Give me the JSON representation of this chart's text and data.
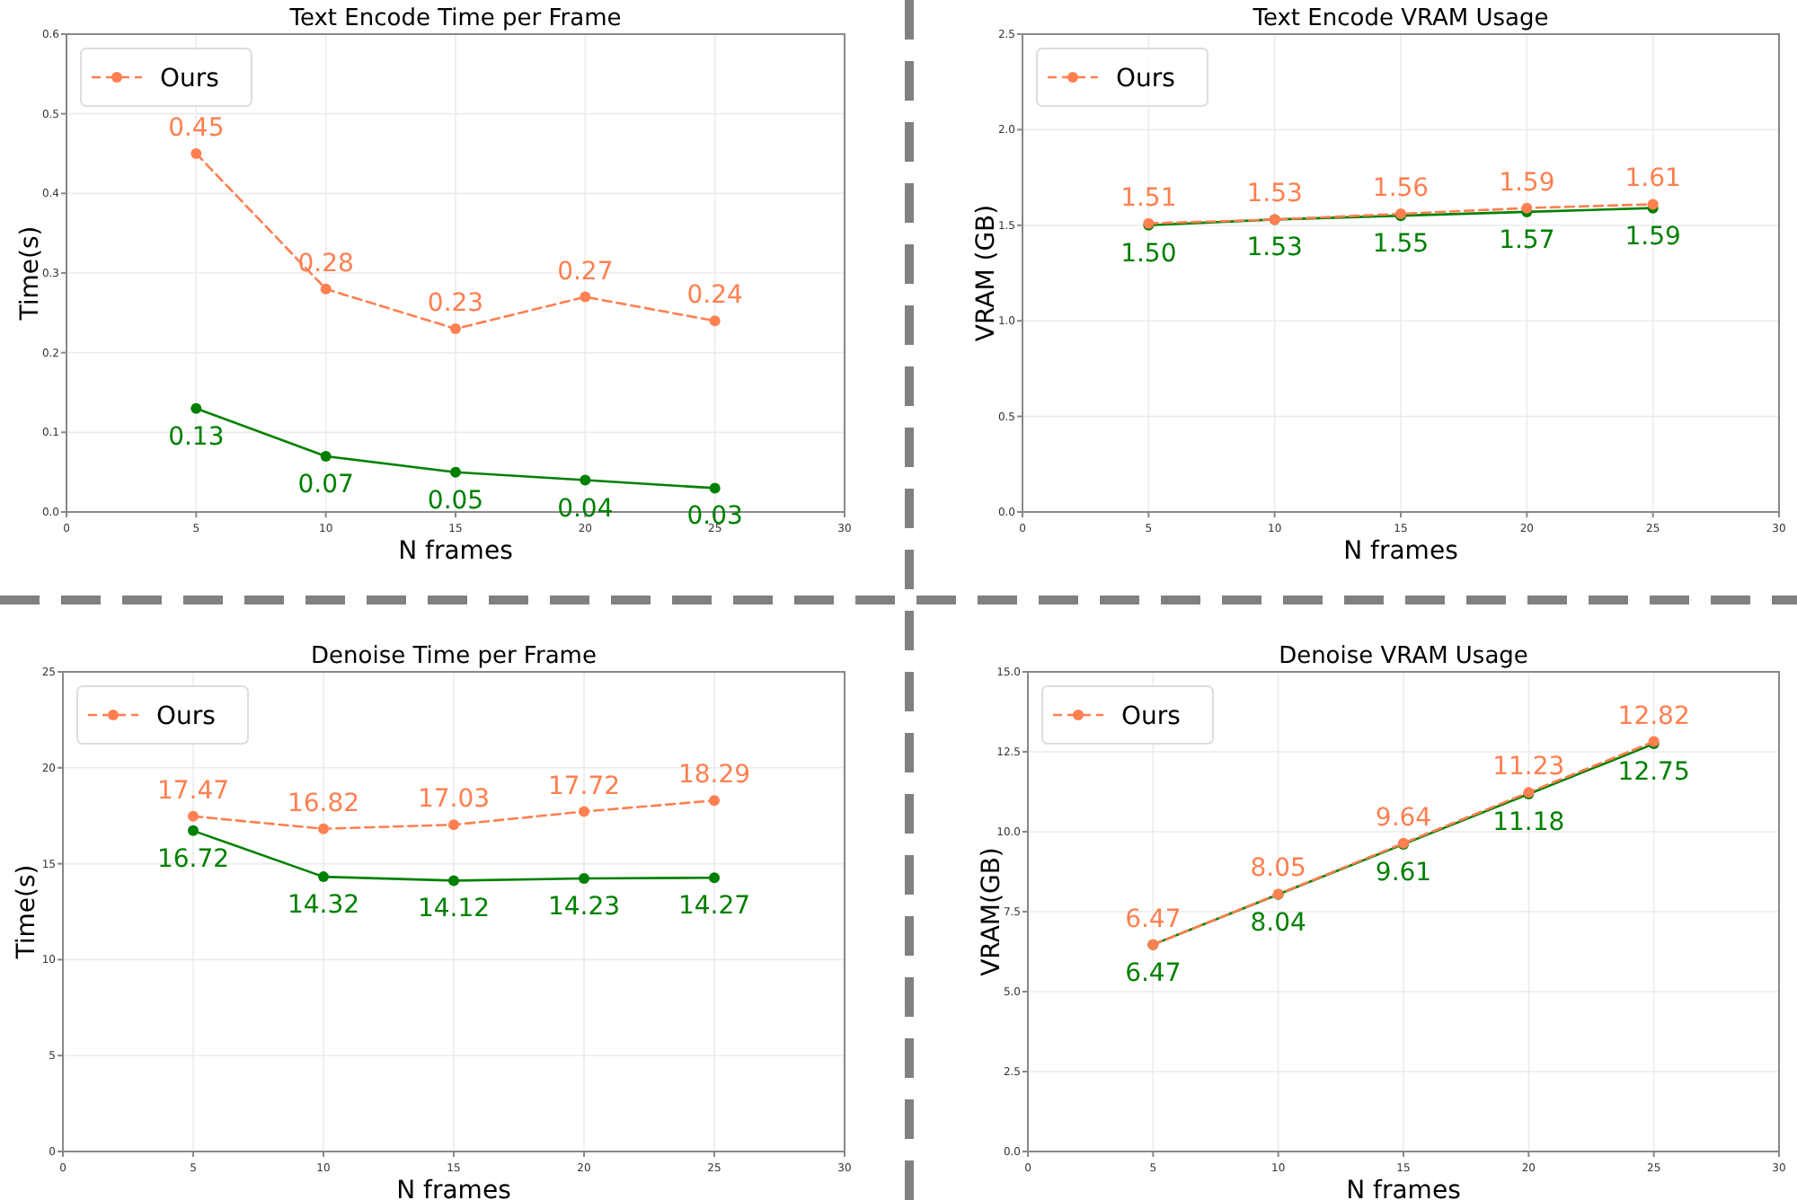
{
  "chart_data": [
    {
      "type": "line",
      "title": "Text Encode Time per Frame",
      "xlabel": "N frames",
      "ylabel": "Time(s)",
      "x": [
        5,
        10,
        15,
        20,
        25
      ],
      "xlim": [
        0,
        30
      ],
      "xticks": [
        0,
        5,
        10,
        15,
        20,
        25,
        30
      ],
      "ylim": [
        0,
        0.6
      ],
      "yticks": [
        {
          "value": 0,
          "label": "0.0"
        },
        0.1,
        0.2,
        0.3,
        0.4,
        0.5,
        0.6
      ],
      "grid": true,
      "legend": "top left",
      "marker": "circle",
      "data_labels": true,
      "series": [
        {
          "color": "#008000",
          "line_style": "solid",
          "values": [
            0.13,
            0.07,
            0.05,
            0.04,
            0.03
          ]
        },
        {
          "name": "Ours",
          "color": "#ff7f50",
          "line_style": "dashed",
          "values": [
            0.45,
            0.28,
            0.23,
            0.27,
            0.24
          ]
        }
      ]
    },
    {
      "type": "line",
      "title": "Text Encode VRAM Usage",
      "xlabel": "N frames",
      "ylabel": "VRAM (GB)",
      "x": [
        5,
        10,
        15,
        20,
        25
      ],
      "xlim": [
        0,
        30
      ],
      "xticks": [
        0,
        5,
        10,
        15,
        20,
        25,
        30
      ],
      "ylim": [
        0,
        2.5
      ],
      "yticks": [
        {
          "value": 0,
          "label": "0.0"
        },
        0.5,
        {
          "value": 1,
          "label": "1.0"
        },
        1.5,
        {
          "value": 2,
          "label": "2.0"
        },
        2.5
      ],
      "grid": true,
      "legend": "top left",
      "marker": "circle",
      "data_labels": true,
      "series": [
        {
          "color": "#008000",
          "line_style": "solid",
          "values": [
            1.5,
            1.53,
            1.55,
            1.57,
            1.59
          ],
          "value_labels": [
            "1.50",
            "1.53",
            "1.55",
            "1.57",
            "1.59"
          ]
        },
        {
          "name": "Ours",
          "color": "#ff7f50",
          "line_style": "dashed",
          "values": [
            1.51,
            1.53,
            1.56,
            1.59,
            1.61
          ]
        }
      ]
    },
    {
      "type": "line",
      "title": "Denoise Time per Frame",
      "xlabel": "N frames",
      "ylabel": "Time(s)",
      "x": [
        5,
        10,
        15,
        20,
        25
      ],
      "xlim": [
        0,
        30
      ],
      "xticks": [
        0,
        5,
        10,
        15,
        20,
        25,
        30
      ],
      "ylim": [
        0,
        25
      ],
      "yticks": [
        0,
        5,
        10,
        15,
        20,
        25
      ],
      "grid": true,
      "legend": "top left",
      "marker": "circle",
      "data_labels": true,
      "series": [
        {
          "color": "#008000",
          "line_style": "solid",
          "values": [
            16.72,
            14.32,
            14.12,
            14.23,
            14.27
          ]
        },
        {
          "name": "Ours",
          "color": "#ff7f50",
          "line_style": "dashed",
          "values": [
            17.47,
            16.82,
            17.03,
            17.72,
            18.29
          ]
        }
      ]
    },
    {
      "type": "line",
      "title": "Denoise VRAM Usage",
      "xlabel": "N frames",
      "ylabel": "VRAM(GB)",
      "x": [
        5,
        10,
        15,
        20,
        25
      ],
      "xlim": [
        0,
        30
      ],
      "xticks": [
        0,
        5,
        10,
        15,
        20,
        25,
        30
      ],
      "ylim": [
        0,
        15
      ],
      "yticks": [
        {
          "value": 0,
          "label": "0.0"
        },
        2.5,
        {
          "value": 5,
          "label": "5.0"
        },
        7.5,
        {
          "value": 10,
          "label": "10.0"
        },
        12.5,
        {
          "value": 15,
          "label": "15.0"
        }
      ],
      "grid": true,
      "legend": "top left",
      "marker": "circle",
      "data_labels": true,
      "series": [
        {
          "color": "#008000",
          "line_style": "solid",
          "values": [
            6.47,
            8.04,
            9.61,
            11.18,
            12.75
          ]
        },
        {
          "name": "Ours",
          "color": "#ff7f50",
          "line_style": "dashed",
          "values": [
            6.47,
            8.05,
            9.64,
            11.23,
            12.82
          ]
        }
      ]
    }
  ]
}
